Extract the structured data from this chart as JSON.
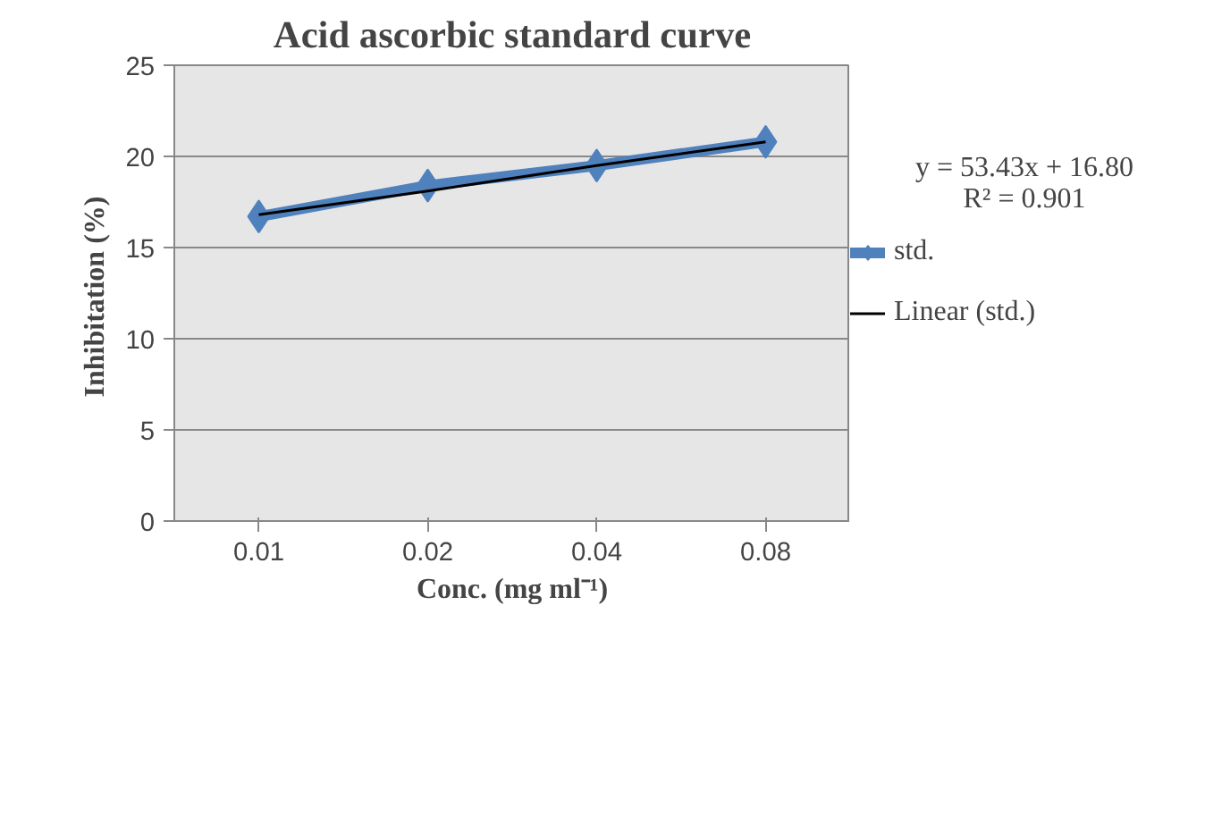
{
  "chart_data": {
    "type": "line",
    "title": "Acid ascorbic standard curve",
    "xlabel": "Conc. (mg ml⁻¹)",
    "ylabel": "Inhibitation  (%)",
    "categories": [
      "0.01",
      "0.02",
      "0.04",
      "0.08"
    ],
    "series": [
      {
        "name": "std.",
        "color": "#4f81bd",
        "values": [
          16.7,
          18.4,
          19.5,
          20.8
        ],
        "marker": "diamond"
      },
      {
        "name": "Linear (std.)",
        "type": "line",
        "color": "#000000",
        "values": [
          16.8,
          18.1,
          19.5,
          20.8
        ],
        "marker": "none"
      }
    ],
    "ylim": [
      0,
      25
    ],
    "yticks": [
      0,
      5,
      10,
      15,
      20,
      25
    ],
    "grid": "y",
    "legend": "right",
    "annotations": [
      "y = 53.43x + 16.80",
      "R² = 0.901"
    ]
  }
}
